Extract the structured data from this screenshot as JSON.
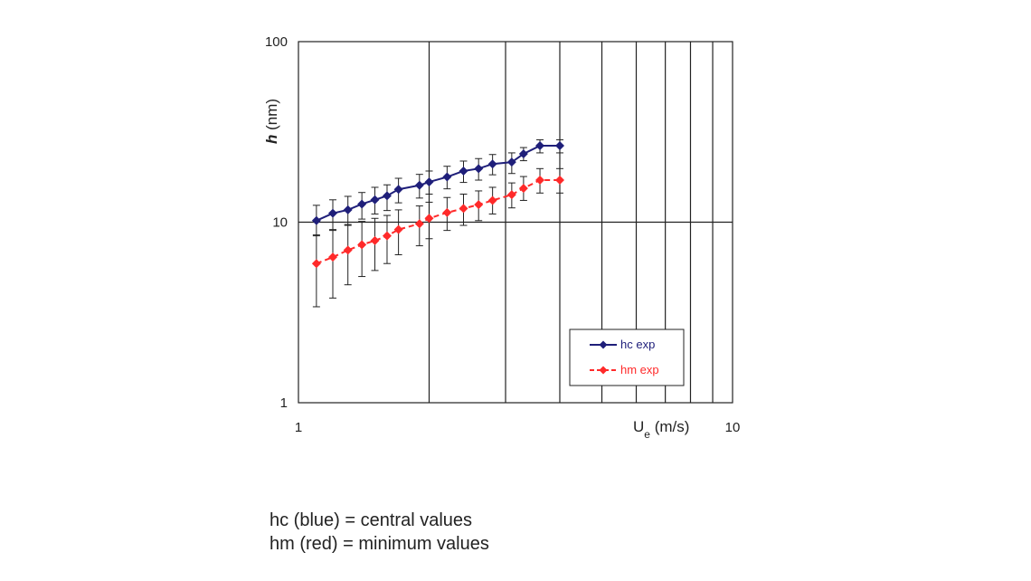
{
  "chart_data": {
    "type": "line",
    "title": "",
    "xlabel": "U",
    "xlabel_subscript": "e",
    "xlabel_unit": " (m/s)",
    "ylabel": "h",
    "ylabel_unit": " (nm)",
    "x_scale": "log",
    "y_scale": "log",
    "xlim": [
      1,
      10
    ],
    "ylim": [
      1,
      100
    ],
    "x_tick_labels": [
      "1",
      "10"
    ],
    "y_tick_labels": [
      "1",
      "10",
      "100"
    ],
    "grid": true,
    "legend_position": "bottom-right",
    "series": [
      {
        "name": "hc exp",
        "color": "#1f1f7a",
        "line_style": "solid",
        "marker": "diamond",
        "x": [
          1.1,
          1.2,
          1.3,
          1.4,
          1.5,
          1.6,
          1.7,
          1.9,
          2.0,
          2.2,
          2.4,
          2.6,
          2.8,
          3.1,
          3.3,
          3.6,
          4.0
        ],
        "y": [
          10.2,
          11.2,
          11.7,
          12.6,
          13.3,
          14.0,
          15.2,
          16.0,
          16.7,
          17.8,
          19.2,
          19.8,
          21.0,
          21.5,
          23.9,
          26.5,
          26.5
        ],
        "err_low": [
          8.4,
          9.0,
          9.7,
          10.4,
          11.1,
          11.6,
          12.8,
          13.6,
          14.3,
          15.3,
          16.6,
          17.1,
          18.3,
          18.6,
          21.9,
          24.2,
          24.2
        ],
        "err_high": [
          12.4,
          13.3,
          13.9,
          14.6,
          15.6,
          16.1,
          17.5,
          18.4,
          19.2,
          20.4,
          21.8,
          22.5,
          23.7,
          24.2,
          25.9,
          28.6,
          28.6
        ]
      },
      {
        "name": "hm exp",
        "color": "#ff2a2a",
        "line_style": "dashed",
        "marker": "diamond",
        "x": [
          1.1,
          1.2,
          1.3,
          1.4,
          1.5,
          1.6,
          1.7,
          1.9,
          2.0,
          2.2,
          2.4,
          2.6,
          2.8,
          3.1,
          3.3,
          3.6,
          4.0
        ],
        "y": [
          5.9,
          6.4,
          7.0,
          7.5,
          7.9,
          8.4,
          9.1,
          9.8,
          10.5,
          11.3,
          11.9,
          12.5,
          13.2,
          14.2,
          15.4,
          17.1,
          17.1
        ],
        "err_low": [
          3.4,
          3.8,
          4.5,
          5.0,
          5.4,
          5.9,
          6.6,
          7.4,
          8.1,
          9.0,
          9.6,
          10.2,
          11.1,
          12.0,
          13.2,
          14.5,
          14.5
        ],
        "err_high": [
          8.5,
          9.1,
          9.6,
          10.1,
          10.5,
          10.9,
          11.7,
          12.3,
          12.9,
          13.7,
          14.3,
          14.9,
          15.6,
          16.5,
          17.9,
          19.8,
          19.8
        ]
      }
    ]
  },
  "caption": {
    "line1": "hc (blue) = central values",
    "line2": "hm (red) = minimum values"
  }
}
